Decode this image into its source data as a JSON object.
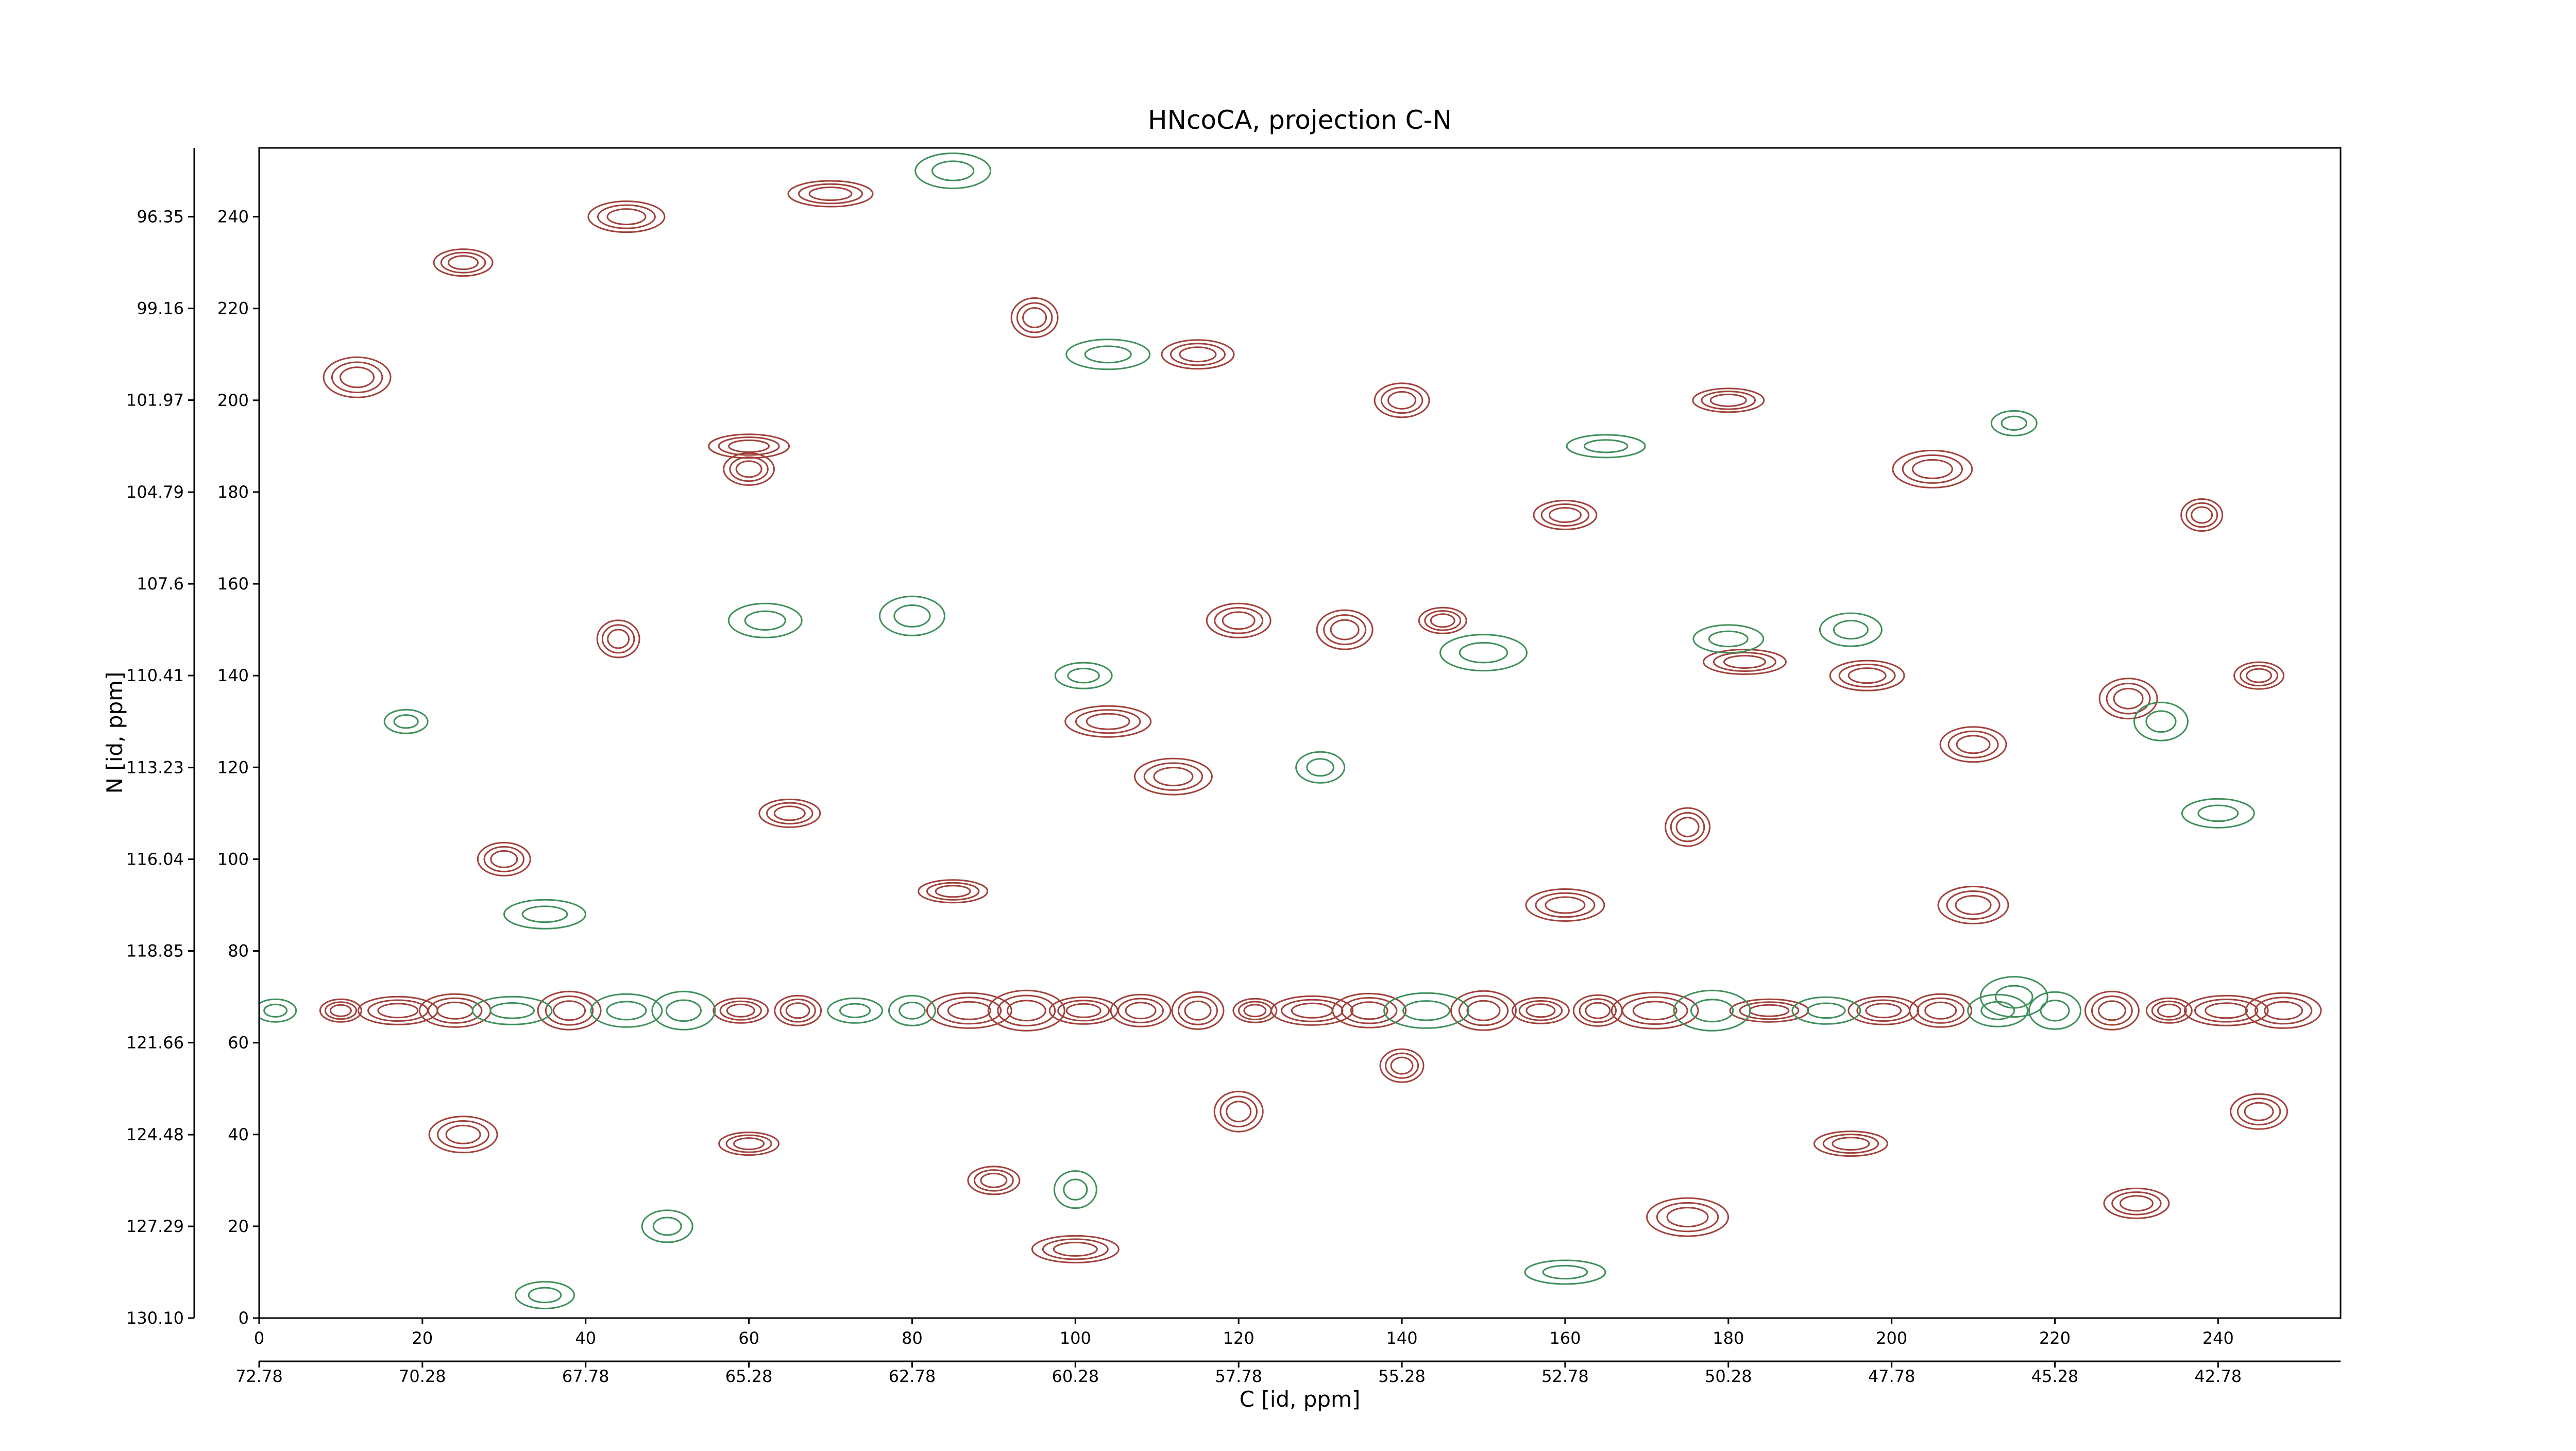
{
  "chart_data": {
    "type": "contour",
    "title": "HNcoCA, projection C-N",
    "xlabel": "C [id, ppm]",
    "ylabel": "N [id, ppm]",
    "xlim": [
      0,
      255
    ],
    "xticks": [
      0,
      20,
      40,
      60,
      80,
      100,
      120,
      140,
      160,
      180,
      200,
      220,
      240
    ],
    "ylim": [
      0,
      255
    ],
    "yticks": [
      0,
      20,
      40,
      60,
      80,
      100,
      120,
      140,
      160,
      180,
      200,
      220,
      240
    ],
    "x2lim": [
      72.78,
      40.905
    ],
    "x2ticks": [
      72.78,
      70.28,
      67.78,
      65.28,
      62.78,
      60.28,
      57.78,
      55.28,
      52.78,
      50.28,
      47.78,
      45.28,
      42.78
    ],
    "y2lim": [
      130.1,
      94.24
    ],
    "y2ticks": [
      {
        "value": 130.1,
        "label": "130.10"
      },
      127.29,
      124.48,
      121.66,
      118.85,
      116.04,
      113.23,
      110.41,
      107.6,
      104.79,
      101.97,
      99.16,
      96.35
    ],
    "series": [
      {
        "color": "#a0413a",
        "x": [
          10,
          17,
          24,
          38,
          59,
          66,
          87,
          94,
          101,
          108,
          115,
          122,
          129,
          136,
          150,
          157,
          164,
          171,
          185,
          199,
          206,
          227,
          234,
          241,
          248,
          12,
          25,
          60,
          44,
          60,
          115,
          120,
          133,
          145,
          104,
          112,
          85,
          65,
          30,
          175,
          182,
          197,
          210,
          229,
          245,
          238,
          205,
          180,
          160,
          140,
          95,
          70,
          45,
          25,
          60,
          90,
          140,
          175,
          195,
          230,
          245,
          120,
          100,
          160,
          210
        ],
        "y": [
          67,
          67,
          67,
          67,
          67,
          67,
          67,
          67,
          67,
          67,
          67,
          67,
          67,
          67,
          67,
          67,
          67,
          67,
          67,
          67,
          67,
          67,
          67,
          67,
          67,
          205,
          230,
          185,
          148,
          190,
          210,
          152,
          150,
          152,
          130,
          118,
          93,
          110,
          100,
          107,
          143,
          140,
          125,
          135,
          140,
          175,
          185,
          200,
          175,
          200,
          218,
          245,
          240,
          40,
          38,
          30,
          55,
          22,
          38,
          25,
          45,
          45,
          15,
          90,
          90
        ]
      },
      {
        "color": "#3f8f5a",
        "x": [
          2,
          31,
          45,
          52,
          73,
          80,
          143,
          178,
          192,
          213,
          220,
          18,
          35,
          62,
          80,
          101,
          130,
          150,
          165,
          180,
          195,
          233,
          215,
          104,
          85,
          215,
          35,
          50,
          100,
          160,
          240
        ],
        "y": [
          67,
          67,
          67,
          67,
          67,
          67,
          67,
          67,
          67,
          67,
          67,
          130,
          88,
          152,
          153,
          140,
          120,
          145,
          190,
          148,
          150,
          130,
          195,
          210,
          250,
          70,
          5,
          20,
          28,
          10,
          110
        ]
      }
    ]
  }
}
